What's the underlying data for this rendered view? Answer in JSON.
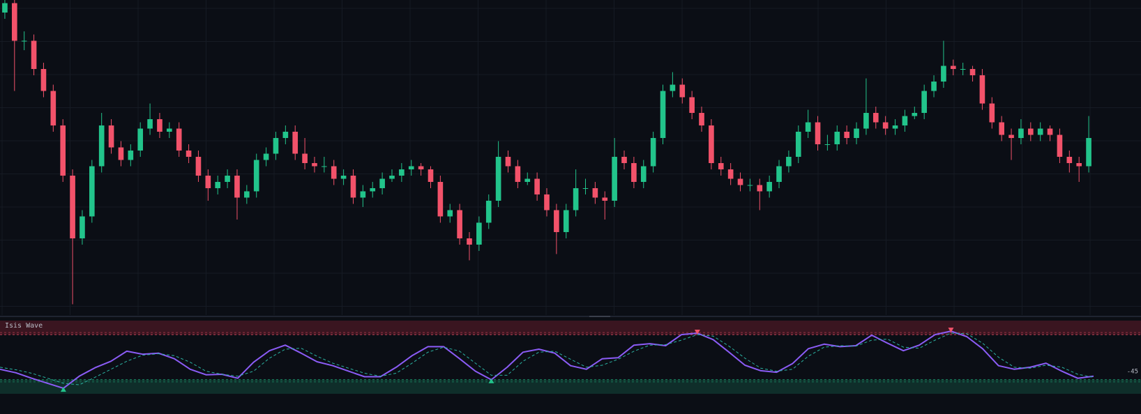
{
  "chart_data": [
    {
      "type": "candlestick",
      "ylim": [
        0,
        100
      ],
      "up_color": "#22c48b",
      "down_color": "#f2526a",
      "grid": true,
      "candles": [
        [
          96,
          100,
          94,
          99
        ],
        [
          99,
          101,
          71,
          87
        ],
        [
          87,
          90,
          84,
          87
        ],
        [
          87,
          89,
          76,
          78
        ],
        [
          78,
          80,
          69,
          71
        ],
        [
          71,
          73,
          58,
          60
        ],
        [
          60,
          62,
          42,
          44
        ],
        [
          44,
          46,
          3,
          24
        ],
        [
          24,
          33,
          22,
          31
        ],
        [
          31,
          49,
          29,
          47
        ],
        [
          47,
          64,
          45,
          60
        ],
        [
          60,
          62,
          51,
          53
        ],
        [
          53,
          55,
          47,
          49
        ],
        [
          49,
          54,
          47,
          52
        ],
        [
          52,
          61,
          50,
          59
        ],
        [
          59,
          67,
          57,
          62
        ],
        [
          62,
          64,
          56,
          58
        ],
        [
          58,
          61,
          56,
          59
        ],
        [
          59,
          61,
          50,
          52
        ],
        [
          52,
          54,
          48,
          50
        ],
        [
          50,
          52,
          42,
          44
        ],
        [
          44,
          46,
          36,
          40
        ],
        [
          40,
          44,
          38,
          42
        ],
        [
          42,
          46,
          40,
          44
        ],
        [
          44,
          46,
          30,
          37
        ],
        [
          37,
          41,
          35,
          39
        ],
        [
          39,
          51,
          37,
          49
        ],
        [
          49,
          53,
          47,
          51
        ],
        [
          51,
          58,
          49,
          56
        ],
        [
          56,
          60,
          54,
          58
        ],
        [
          58,
          60,
          49,
          51
        ],
        [
          51,
          56,
          46,
          48
        ],
        [
          48,
          50,
          45,
          47
        ],
        [
          47,
          50,
          45,
          47
        ],
        [
          47,
          49,
          41,
          43
        ],
        [
          43,
          46,
          41,
          44
        ],
        [
          44,
          46,
          35,
          37
        ],
        [
          37,
          41,
          34,
          39
        ],
        [
          39,
          42,
          37,
          40
        ],
        [
          40,
          45,
          38,
          43
        ],
        [
          43,
          46,
          42,
          44
        ],
        [
          44,
          48,
          42,
          46
        ],
        [
          46,
          49,
          44,
          47
        ],
        [
          47,
          48,
          44,
          46
        ],
        [
          46,
          47,
          40,
          42
        ],
        [
          42,
          44,
          29,
          31
        ],
        [
          31,
          35,
          29,
          33
        ],
        [
          33,
          35,
          22,
          24
        ],
        [
          24,
          26,
          17,
          22
        ],
        [
          22,
          31,
          20,
          29
        ],
        [
          29,
          38,
          27,
          36
        ],
        [
          36,
          55,
          34,
          50
        ],
        [
          50,
          52,
          45,
          47
        ],
        [
          47,
          49,
          40,
          42
        ],
        [
          42,
          45,
          41,
          43
        ],
        [
          43,
          45,
          36,
          38
        ],
        [
          38,
          40,
          31,
          33
        ],
        [
          33,
          35,
          19,
          26
        ],
        [
          26,
          35,
          24,
          33
        ],
        [
          33,
          46,
          31,
          40
        ],
        [
          40,
          43,
          38,
          40
        ],
        [
          40,
          42,
          35,
          37
        ],
        [
          37,
          39,
          30,
          36
        ],
        [
          36,
          56,
          34,
          50
        ],
        [
          50,
          52,
          46,
          48
        ],
        [
          48,
          50,
          40,
          42
        ],
        [
          42,
          49,
          40,
          47
        ],
        [
          47,
          58,
          45,
          56
        ],
        [
          56,
          73,
          54,
          71
        ],
        [
          71,
          77,
          69,
          73
        ],
        [
          73,
          75,
          67,
          69
        ],
        [
          69,
          71,
          62,
          64
        ],
        [
          64,
          66,
          58,
          60
        ],
        [
          60,
          62,
          46,
          48
        ],
        [
          48,
          50,
          44,
          46
        ],
        [
          46,
          48,
          41,
          43
        ],
        [
          43,
          45,
          39,
          41
        ],
        [
          41,
          43,
          39,
          41
        ],
        [
          41,
          43,
          33,
          39
        ],
        [
          39,
          44,
          37,
          42
        ],
        [
          42,
          49,
          40,
          47
        ],
        [
          47,
          52,
          45,
          50
        ],
        [
          50,
          60,
          48,
          58
        ],
        [
          58,
          65,
          56,
          61
        ],
        [
          61,
          63,
          52,
          54
        ],
        [
          54,
          57,
          52,
          54
        ],
        [
          54,
          60,
          52,
          58
        ],
        [
          58,
          60,
          54,
          56
        ],
        [
          56,
          61,
          54,
          59
        ],
        [
          59,
          75,
          57,
          64
        ],
        [
          64,
          66,
          59,
          61
        ],
        [
          61,
          63,
          57,
          59
        ],
        [
          59,
          62,
          57,
          60
        ],
        [
          60,
          65,
          58,
          63
        ],
        [
          63,
          66,
          62,
          64
        ],
        [
          64,
          73,
          62,
          71
        ],
        [
          71,
          76,
          69,
          74
        ],
        [
          74,
          87,
          72,
          79
        ],
        [
          79,
          81,
          76,
          78
        ],
        [
          78,
          80,
          76,
          78
        ],
        [
          78,
          79,
          74,
          76
        ],
        [
          76,
          78,
          65,
          67
        ],
        [
          67,
          69,
          59,
          61
        ],
        [
          61,
          63,
          55,
          57
        ],
        [
          57,
          59,
          49,
          56
        ],
        [
          56,
          62,
          54,
          59
        ],
        [
          59,
          61,
          55,
          57
        ],
        [
          57,
          61,
          55,
          59
        ],
        [
          59,
          60,
          55,
          57
        ],
        [
          57,
          59,
          48,
          50
        ],
        [
          50,
          52,
          45,
          48
        ],
        [
          48,
          50,
          42,
          47
        ],
        [
          47,
          63,
          45,
          56
        ]
      ]
    },
    {
      "type": "line",
      "title": "Isis Wave",
      "ylim": [
        -73,
        73
      ],
      "levels": [
        45,
        -45
      ],
      "level_colors": [
        "#f2526a",
        "#22c48b"
      ],
      "band_colors": [
        "#3a1520",
        "#0f2e2a"
      ],
      "series": [
        {
          "color": "#8b5cf6",
          "dashed": false,
          "values": [
            -24,
            -31,
            -42,
            -52,
            -62,
            -38,
            -21,
            -8,
            12,
            6,
            8,
            -3,
            -24,
            -35,
            -34,
            -42,
            -10,
            13,
            24,
            8,
            -9,
            -17,
            -28,
            -39,
            -39,
            -20,
            3,
            21,
            21,
            -3,
            -28,
            -45,
            -20,
            10,
            16,
            8,
            -17,
            -24,
            -3,
            -1,
            24,
            27,
            23,
            45,
            48,
            35,
            10,
            -16,
            -27,
            -30,
            -13,
            17,
            26,
            21,
            23,
            44,
            28,
            13,
            24,
            45,
            52,
            41,
            17,
            -17,
            -24,
            -20,
            -12,
            -28,
            -42,
            -38
          ]
        },
        {
          "color": "#2bb3a3",
          "dashed": true,
          "values": [
            -20,
            -25,
            -32,
            -42,
            -52,
            -55,
            -40,
            -24,
            -8,
            4,
            7,
            3,
            -10,
            -28,
            -34,
            -38,
            -28,
            -2,
            16,
            18,
            2,
            -12,
            -22,
            -32,
            -38,
            -32,
            -12,
            10,
            20,
            12,
            -12,
            -36,
            -36,
            -8,
            10,
            12,
            -4,
            -20,
            -16,
            -4,
            12,
            24,
            25,
            34,
            45,
            42,
            22,
            -2,
            -22,
            -28,
            -24,
            2,
            20,
            23,
            22,
            34,
            36,
            20,
            18,
            34,
            48,
            47,
            28,
            0,
            -20,
            -22,
            -16,
            -20,
            -34,
            -40
          ]
        }
      ],
      "markers": [
        {
          "index": 4,
          "direction": "up",
          "color": "#22c48b"
        },
        {
          "index": 31,
          "direction": "up",
          "color": "#22c48b"
        },
        {
          "index": 44,
          "direction": "down",
          "color": "#f2526a"
        },
        {
          "index": 60,
          "direction": "down",
          "color": "#f2526a"
        }
      ]
    }
  ]
}
